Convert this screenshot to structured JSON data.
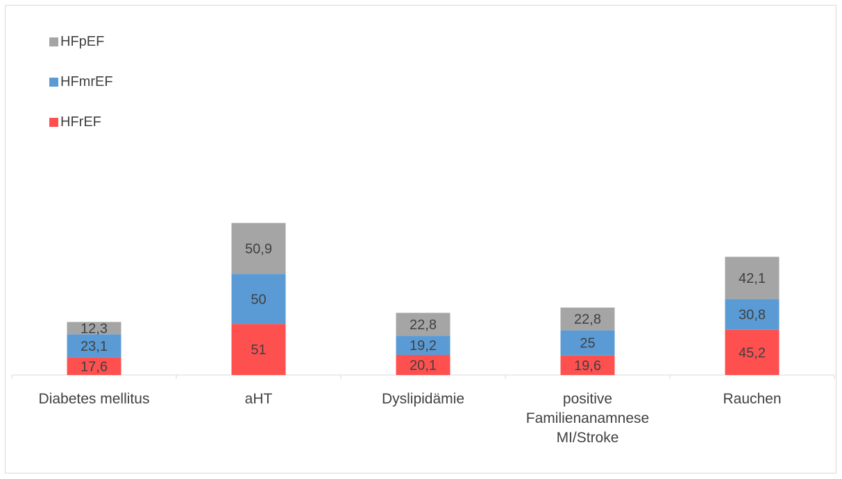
{
  "chart_data": {
    "type": "bar",
    "stacked": true,
    "categories": [
      [
        "Diabetes mellitus"
      ],
      [
        "aHT"
      ],
      [
        "Dyslipidämie"
      ],
      [
        "positive",
        "Familienanamnese",
        "MI/Stroke"
      ],
      [
        "Rauchen"
      ]
    ],
    "series": [
      {
        "name": "HFrEF",
        "color": "#ff5050",
        "values": [
          17.6,
          51,
          20.1,
          19.6,
          45.2
        ],
        "labels": [
          "17,6",
          "51",
          "20,1",
          "19,6",
          "45,2"
        ]
      },
      {
        "name": "HFmrEF",
        "color": "#5b9bd5",
        "values": [
          23.1,
          50,
          19.2,
          25,
          30.8
        ],
        "labels": [
          "23,1",
          "50",
          "19,2",
          "25",
          "30,8"
        ]
      },
      {
        "name": "HFpEF",
        "color": "#a5a5a5",
        "values": [
          12.3,
          50.9,
          22.8,
          22.8,
          42.1
        ],
        "labels": [
          "12,3",
          "50,9",
          "22,8",
          "22,8",
          "42,1"
        ]
      }
    ],
    "legend_order": [
      "HFpEF",
      "HFmrEF",
      "HFrEF"
    ],
    "legend_position": "top-left",
    "ylim": [
      0,
      160
    ],
    "grid": false,
    "title": "",
    "xlabel": "",
    "ylabel": ""
  }
}
